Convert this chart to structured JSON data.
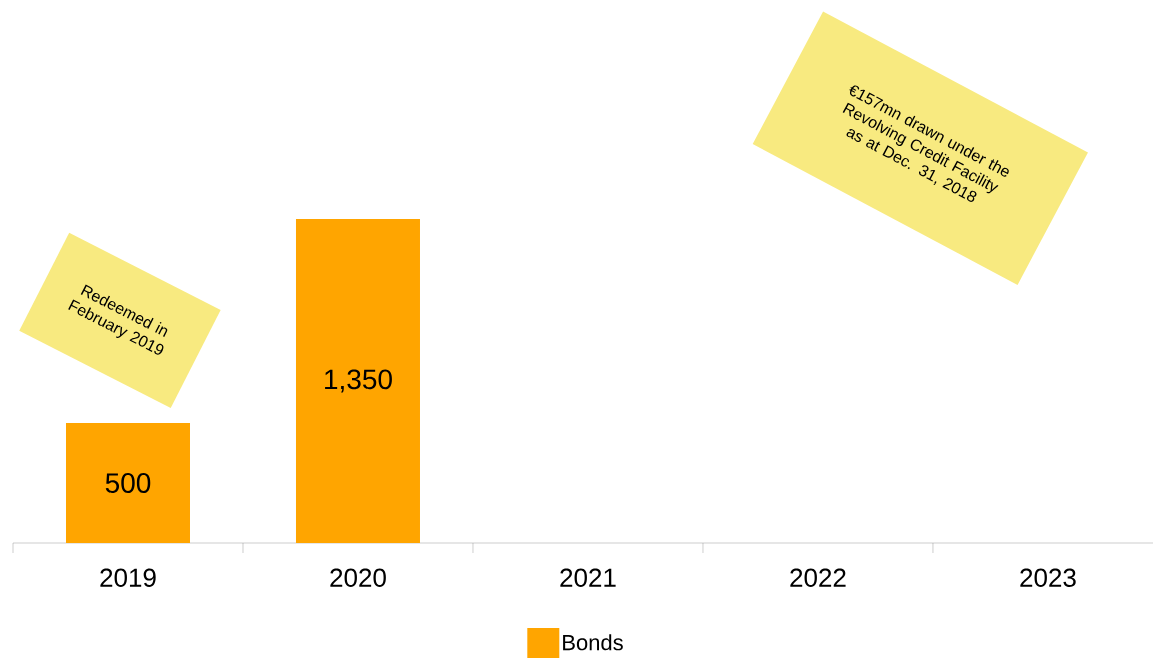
{
  "chart_data": {
    "type": "bar",
    "categories": [
      "2019",
      "2020",
      "2021",
      "2022",
      "2023"
    ],
    "series": [
      {
        "name": "Bonds",
        "color": "#ffa500",
        "values": [
          500,
          1350,
          null,
          null,
          null
        ],
        "value_labels": [
          "500",
          "1,350",
          null,
          null,
          null
        ]
      }
    ],
    "annotations": [
      "Redeemed in February 2019",
      "€157mn drawn under the Revolving Credit Facility as at Dec. 31, 2018"
    ],
    "legend": "bottom"
  }
}
